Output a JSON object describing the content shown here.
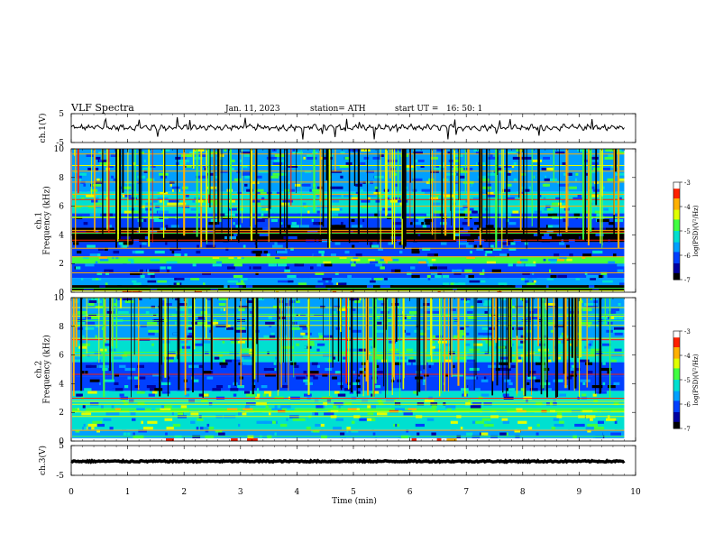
{
  "header": {
    "title": "VLF Spectra",
    "date": "Jan. 11, 2023",
    "station": "station= ATH",
    "start": "start UT =   16: 50: 1"
  },
  "chart_data": [
    {
      "type": "line",
      "name": "ch1-waveform",
      "ylabel": "ch.1(V)",
      "ylim": [
        -5,
        5
      ],
      "yticks": [
        "5",
        "-5"
      ],
      "baseline": 0.2,
      "trace_color": "#000000"
    },
    {
      "type": "heatmap",
      "name": "ch1-spectrogram",
      "ylabel": "ch.1\nFrequency (kHz)",
      "ylim": [
        0,
        10
      ],
      "yticks": [
        "0",
        "2",
        "4",
        "6",
        "8",
        "10"
      ],
      "colorbar": {
        "label": "log(PSD)(V²/Hz)",
        "range": [
          -7,
          -3
        ],
        "ticks": [
          "-3",
          "-4",
          "-5",
          "-6",
          "-7"
        ]
      },
      "bands": [
        {
          "from": 0.0,
          "to": 0.1,
          "level": -3.0
        },
        {
          "from": 0.1,
          "to": 0.5,
          "level": -6.9
        },
        {
          "from": 0.5,
          "to": 1.0,
          "level": -5.6
        },
        {
          "from": 1.0,
          "to": 2.0,
          "level": -5.9
        },
        {
          "from": 2.0,
          "to": 2.5,
          "level": -4.9
        },
        {
          "from": 2.5,
          "to": 3.5,
          "level": -6.1
        },
        {
          "from": 3.5,
          "to": 4.5,
          "level": -6.9
        },
        {
          "from": 4.5,
          "to": 5.5,
          "level": -6.2
        },
        {
          "from": 5.5,
          "to": 7.0,
          "level": -5.3
        },
        {
          "from": 7.0,
          "to": 10.0,
          "level": -5.5
        }
      ]
    },
    {
      "type": "heatmap",
      "name": "ch2-spectrogram",
      "ylabel": "ch.2\nFrequency (kHz)",
      "ylim": [
        0,
        10
      ],
      "yticks": [
        "0",
        "2",
        "4",
        "6",
        "8",
        "10"
      ],
      "colorbar": {
        "label": "log(PSD)(V²/Hz)",
        "range": [
          -7,
          -3
        ],
        "ticks": [
          "-3",
          "-4",
          "-5",
          "-6",
          "-7"
        ]
      },
      "bands": [
        {
          "from": 0.0,
          "to": 0.2,
          "level": -3.0
        },
        {
          "from": 0.2,
          "to": 0.8,
          "level": -5.5
        },
        {
          "from": 0.8,
          "to": 2.0,
          "level": -5.2
        },
        {
          "from": 2.0,
          "to": 2.3,
          "level": -4.6
        },
        {
          "from": 2.3,
          "to": 3.5,
          "level": -5.4
        },
        {
          "from": 3.5,
          "to": 4.5,
          "level": -6.0
        },
        {
          "from": 4.5,
          "to": 5.5,
          "level": -6.3
        },
        {
          "from": 5.5,
          "to": 7.0,
          "level": -5.4
        },
        {
          "from": 7.0,
          "to": 10.0,
          "level": -5.6
        }
      ]
    },
    {
      "type": "line",
      "name": "ch3-waveform",
      "ylabel": "ch.3(V)",
      "ylim": [
        -5,
        5
      ],
      "yticks": [
        "5",
        "-5"
      ],
      "baseline": -0.3,
      "trace_color": "#000000"
    }
  ],
  "xaxis": {
    "label": "Time (min)",
    "range": [
      0,
      10
    ],
    "ticks": [
      "0",
      "1",
      "2",
      "3",
      "4",
      "5",
      "6",
      "7",
      "8",
      "9",
      "10"
    ],
    "data_end": 9.8
  },
  "colormap": [
    "#000000",
    "#0000a0",
    "#0040ff",
    "#00a0ff",
    "#00e0d0",
    "#40ff40",
    "#e0ff00",
    "#ffb000",
    "#ff2000",
    "#ffffff"
  ]
}
